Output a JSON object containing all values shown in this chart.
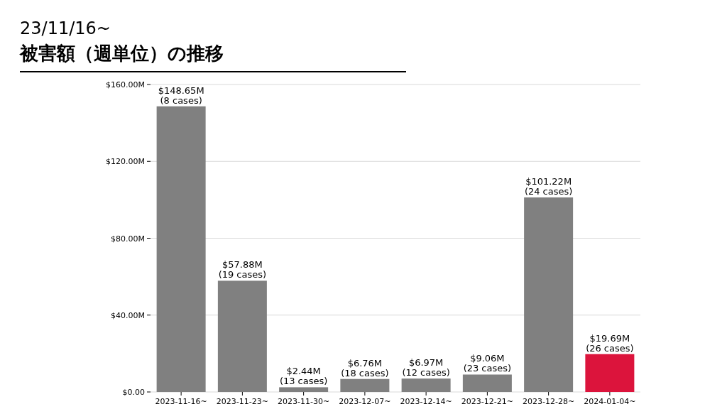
{
  "chart_data": {
    "type": "bar",
    "title": "23/11/16~",
    "subtitle": "被害額（週単位）の推移",
    "categories": [
      "2023-11-16~",
      "2023-11-23~",
      "2023-11-30~",
      "2023-12-07~",
      "2023-12-14~",
      "2023-12-21~",
      "2023-12-28~",
      "2024-01-04~"
    ],
    "values": [
      148.65,
      57.88,
      2.44,
      6.76,
      6.97,
      9.06,
      101.22,
      19.69
    ],
    "colors": [
      "#808080",
      "#808080",
      "#808080",
      "#808080",
      "#808080",
      "#808080",
      "#808080",
      "#dc143c"
    ],
    "value_labels": [
      "$148.65M",
      "$57.88M",
      "$2.44M",
      "$6.76M",
      "$6.97M",
      "$9.06M",
      "$101.22M",
      "$19.69M"
    ],
    "annotations": [
      {
        "text": "(8 cases)",
        "x": "2023-11-16~",
        "y": 148.65
      },
      {
        "text": "(19 cases)",
        "x": "2023-11-23~",
        "y": 57.88
      },
      {
        "text": "(13 cases)",
        "x": "2023-11-30~",
        "y": 2.44
      },
      {
        "text": "(18 cases)",
        "x": "2023-12-07~",
        "y": 6.76
      },
      {
        "text": "(12 cases)",
        "x": "2023-12-14~",
        "y": 6.97
      },
      {
        "text": "(23 cases)",
        "x": "2023-12-21~",
        "y": 9.06
      },
      {
        "text": "(24 cases)",
        "x": "2023-12-28~",
        "y": 101.22
      },
      {
        "text": "(26 cases)",
        "x": "2024-01-04~",
        "y": 19.69
      }
    ],
    "ylim": [
      0,
      160
    ],
    "yticks": [
      {
        "value": 0,
        "label": "$0.00"
      },
      {
        "value": 40,
        "label": "$40.00M"
      },
      {
        "value": 80,
        "label": "$80.00M"
      },
      {
        "value": 120,
        "label": "$120.00M"
      },
      {
        "value": 160,
        "label": "$160.00M"
      }
    ],
    "grid": "y"
  }
}
